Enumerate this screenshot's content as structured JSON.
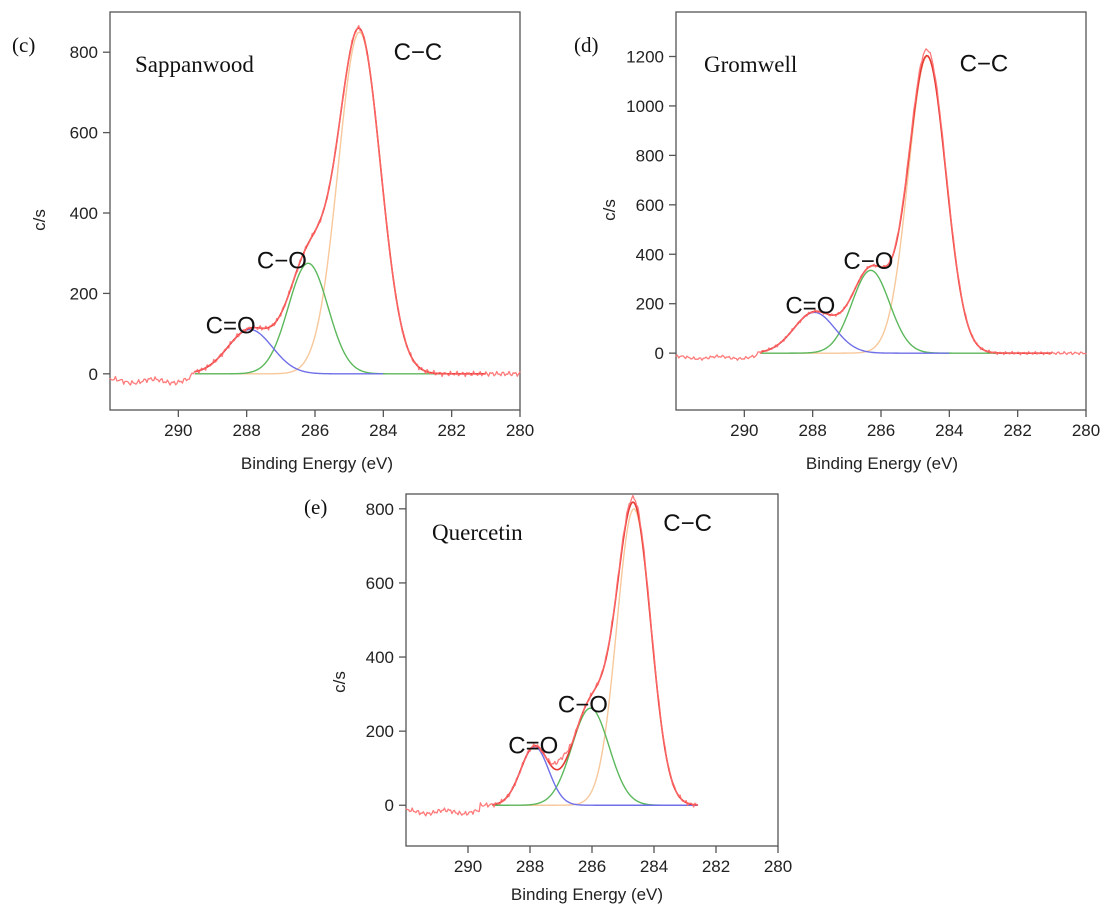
{
  "chart_data": [
    {
      "type": "line",
      "panel": "(c)",
      "sample_name": "Sappanwood",
      "xlabel": "Binding Energy (eV)",
      "ylabel": "c/s",
      "xlim": [
        292,
        280
      ],
      "ylim": [
        -90,
        900
      ],
      "x_reversed": true,
      "x_ticks": [
        290,
        288,
        286,
        284,
        282,
        280
      ],
      "y_ticks": [
        0,
        200,
        400,
        600,
        800
      ],
      "grid": false,
      "peak_labels": [
        {
          "text": "C−C",
          "x": 283.7,
          "y": 780
        },
        {
          "text": "C−O",
          "x": 287.7,
          "y": 262
        },
        {
          "text": "C=O",
          "x": 289.2,
          "y": 100
        }
      ],
      "measured": {
        "name": "Measured",
        "color": "#ff6b6b",
        "range": [
          292,
          280
        ],
        "peaks": [
          [
            284.7,
            850,
            0.62
          ],
          [
            286.2,
            275,
            0.58
          ],
          [
            287.9,
            110,
            0.65
          ]
        ]
      },
      "series": [
        {
          "name": "C−C",
          "color": "#f7c89b",
          "x0": 284.7,
          "amplitude": 850,
          "sigma": 0.62,
          "range": [
            289.5,
            281
          ]
        },
        {
          "name": "C−O",
          "color": "#5cb85c",
          "x0": 286.2,
          "amplitude": 275,
          "sigma": 0.58,
          "range": [
            289.5,
            281
          ]
        },
        {
          "name": "C=O",
          "color": "#6f6fe8",
          "x0": 287.9,
          "amplitude": 110,
          "sigma": 0.65,
          "range": [
            289.5,
            284
          ]
        },
        {
          "name": "Envelope",
          "color": "#e53935",
          "x0": 0,
          "amplitude": 0,
          "sigma": 1,
          "envelope": true,
          "range": [
            289.5,
            281
          ]
        }
      ]
    },
    {
      "type": "line",
      "panel": "(d)",
      "sample_name": "Gromwell",
      "xlabel": "Binding Energy (eV)",
      "ylabel": "c/s",
      "xlim": [
        292,
        280
      ],
      "ylim": [
        -230,
        1380
      ],
      "x_reversed": true,
      "x_ticks": [
        290,
        288,
        286,
        284,
        282,
        280
      ],
      "y_ticks": [
        0,
        200,
        400,
        600,
        800,
        1000,
        1200
      ],
      "grid": false,
      "peak_labels": [
        {
          "text": "C−C",
          "x": 283.7,
          "y": 1140
        },
        {
          "text": "C−O",
          "x": 287.1,
          "y": 340
        },
        {
          "text": "C=O",
          "x": 288.8,
          "y": 160
        }
      ],
      "measured": {
        "name": "Measured",
        "color": "#ff6b6b",
        "range": [
          292,
          280
        ],
        "peaks": [
          [
            284.65,
            1225,
            0.55
          ],
          [
            286.3,
            335,
            0.55
          ],
          [
            287.95,
            165,
            0.6
          ]
        ]
      },
      "series": [
        {
          "name": "C−C",
          "color": "#f7c89b",
          "x0": 284.65,
          "amplitude": 1200,
          "sigma": 0.55,
          "range": [
            289.5,
            281
          ]
        },
        {
          "name": "C−O",
          "color": "#5cb85c",
          "x0": 286.3,
          "amplitude": 335,
          "sigma": 0.55,
          "range": [
            289.5,
            281
          ]
        },
        {
          "name": "C=O",
          "color": "#6f6fe8",
          "x0": 287.95,
          "amplitude": 165,
          "sigma": 0.6,
          "range": [
            289.5,
            284
          ]
        },
        {
          "name": "Envelope",
          "color": "#e53935",
          "x0": 0,
          "amplitude": 0,
          "sigma": 1,
          "envelope": true,
          "range": [
            289.5,
            281
          ]
        }
      ]
    },
    {
      "type": "line",
      "panel": "(e)",
      "sample_name": "Quercetin",
      "xlabel": "Binding Energy (eV)",
      "ylabel": "c/s",
      "xlim": [
        292,
        280
      ],
      "ylim": [
        -110,
        840
      ],
      "x_reversed": true,
      "x_ticks": [
        290,
        288,
        286,
        284,
        282,
        280
      ],
      "y_ticks": [
        0,
        200,
        400,
        600,
        800
      ],
      "grid": false,
      "peak_labels": [
        {
          "text": "C−C",
          "x": 283.7,
          "y": 740
        },
        {
          "text": "C−O",
          "x": 287.1,
          "y": 250
        },
        {
          "text": "C=O",
          "x": 288.7,
          "y": 140
        }
      ],
      "measured": {
        "name": "Measured",
        "color": "#ff6b6b",
        "range": [
          292,
          282.6
        ],
        "peaks": [
          [
            284.65,
            812,
            0.55
          ],
          [
            286.05,
            262,
            0.6
          ],
          [
            287.85,
            158,
            0.45
          ],
          [
            287.0,
            25,
            0.2
          ]
        ]
      },
      "series": [
        {
          "name": "C−C",
          "color": "#f7c89b",
          "x0": 284.65,
          "amplitude": 800,
          "sigma": 0.55,
          "range": [
            289.2,
            282.6
          ]
        },
        {
          "name": "C−O",
          "color": "#5cb85c",
          "x0": 286.05,
          "amplitude": 262,
          "sigma": 0.6,
          "range": [
            289.2,
            282.6
          ]
        },
        {
          "name": "C=O",
          "color": "#6f6fe8",
          "x0": 287.85,
          "amplitude": 158,
          "sigma": 0.45,
          "range": [
            289.2,
            282.6
          ]
        },
        {
          "name": "Envelope",
          "color": "#e53935",
          "x0": 0,
          "amplitude": 0,
          "sigma": 1,
          "envelope": true,
          "range": [
            289.2,
            282.6
          ]
        }
      ]
    }
  ]
}
